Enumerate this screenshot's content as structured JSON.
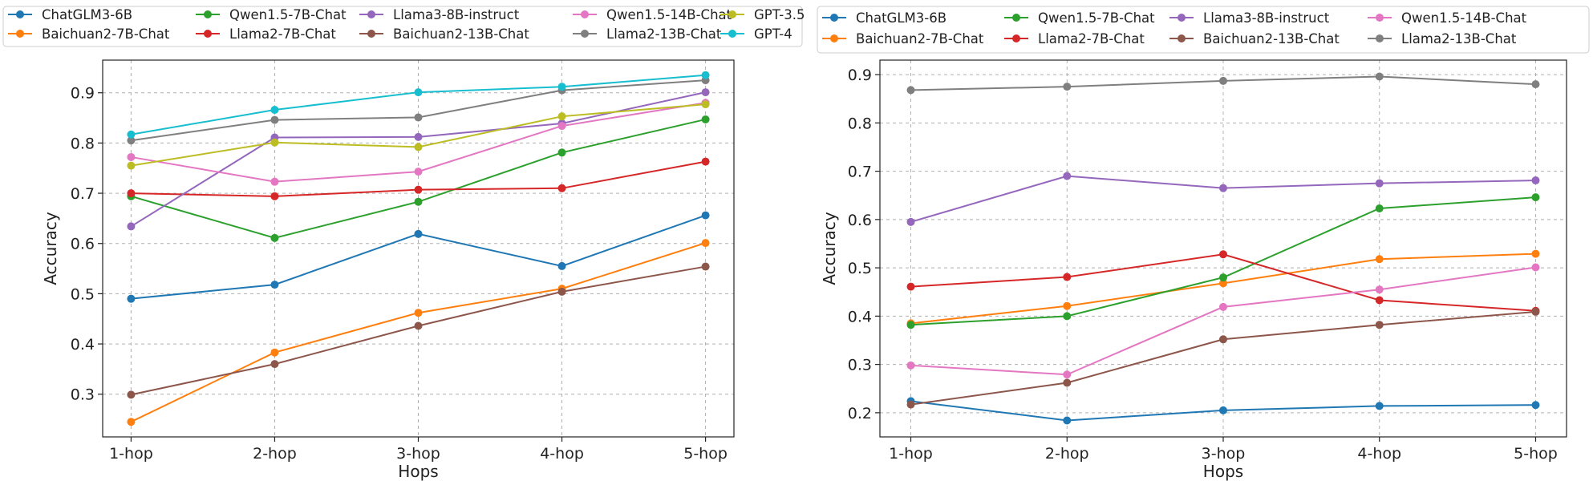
{
  "chart_data": [
    {
      "type": "line",
      "title": "",
      "xlabel": "Hops",
      "ylabel": "Accuracy",
      "categories": [
        "1-hop",
        "2-hop",
        "3-hop",
        "4-hop",
        "5-hop"
      ],
      "ylim": [
        0.215,
        0.965
      ],
      "yticks": [
        0.3,
        0.4,
        0.5,
        0.6,
        0.7,
        0.8,
        0.9
      ],
      "ytick_labels": [
        "0.3",
        "0.4",
        "0.5",
        "0.6",
        "0.7",
        "0.8",
        "0.9"
      ],
      "grid": true,
      "legend_position": "top",
      "series": [
        {
          "name": "ChatGLM3-6B",
          "color": "#1f77b4",
          "values": [
            0.49,
            0.518,
            0.619,
            0.555,
            0.656
          ]
        },
        {
          "name": "Baichuan2-7B-Chat",
          "color": "#ff7f0e",
          "values": [
            0.245,
            0.383,
            0.462,
            0.51,
            0.601
          ]
        },
        {
          "name": "Qwen1.5-7B-Chat",
          "color": "#2ca02c",
          "values": [
            0.694,
            0.611,
            0.683,
            0.781,
            0.847
          ]
        },
        {
          "name": "Llama2-7B-Chat",
          "color": "#d62728",
          "values": [
            0.7,
            0.694,
            0.707,
            0.71,
            0.763
          ]
        },
        {
          "name": "Llama3-8B-instruct",
          "color": "#9467bd",
          "values": [
            0.634,
            0.811,
            0.812,
            0.839,
            0.901
          ]
        },
        {
          "name": "Baichuan2-13B-Chat",
          "color": "#8c564b",
          "values": [
            0.299,
            0.36,
            0.436,
            0.504,
            0.554
          ]
        },
        {
          "name": "Qwen1.5-14B-Chat",
          "color": "#e377c2",
          "values": [
            0.772,
            0.723,
            0.743,
            0.834,
            0.88
          ]
        },
        {
          "name": "Llama2-13B-Chat",
          "color": "#7f7f7f",
          "values": [
            0.805,
            0.846,
            0.851,
            0.905,
            0.925
          ]
        },
        {
          "name": "GPT-3.5",
          "color": "#bcbd22",
          "values": [
            0.755,
            0.801,
            0.792,
            0.853,
            0.877
          ]
        },
        {
          "name": "GPT-4",
          "color": "#17becf",
          "values": [
            0.817,
            0.866,
            0.901,
            0.912,
            0.935
          ]
        }
      ]
    },
    {
      "type": "line",
      "title": "",
      "xlabel": "Hops",
      "ylabel": "Accuracy",
      "categories": [
        "1-hop",
        "2-hop",
        "3-hop",
        "4-hop",
        "5-hop"
      ],
      "ylim": [
        0.15,
        0.93
      ],
      "yticks": [
        0.2,
        0.3,
        0.4,
        0.5,
        0.6,
        0.7,
        0.8,
        0.9
      ],
      "ytick_labels": [
        "0.2",
        "0.3",
        "0.4",
        "0.5",
        "0.6",
        "0.7",
        "0.8",
        "0.9"
      ],
      "grid": true,
      "legend_position": "top",
      "series": [
        {
          "name": "ChatGLM3-6B",
          "color": "#1f77b4",
          "values": [
            0.224,
            0.184,
            0.205,
            0.214,
            0.216
          ]
        },
        {
          "name": "Baichuan2-7B-Chat",
          "color": "#ff7f0e",
          "values": [
            0.385,
            0.421,
            0.468,
            0.518,
            0.529
          ]
        },
        {
          "name": "Qwen1.5-7B-Chat",
          "color": "#2ca02c",
          "values": [
            0.382,
            0.4,
            0.48,
            0.623,
            0.646
          ]
        },
        {
          "name": "Llama2-7B-Chat",
          "color": "#d62728",
          "values": [
            0.461,
            0.481,
            0.528,
            0.433,
            0.411
          ]
        },
        {
          "name": "Llama3-8B-instruct",
          "color": "#9467bd",
          "values": [
            0.595,
            0.69,
            0.665,
            0.675,
            0.681
          ]
        },
        {
          "name": "Baichuan2-13B-Chat",
          "color": "#8c564b",
          "values": [
            0.217,
            0.262,
            0.352,
            0.382,
            0.409
          ]
        },
        {
          "name": "Qwen1.5-14B-Chat",
          "color": "#e377c2",
          "values": [
            0.298,
            0.279,
            0.419,
            0.455,
            0.501
          ]
        },
        {
          "name": "Llama2-13B-Chat",
          "color": "#7f7f7f",
          "values": [
            0.868,
            0.875,
            0.887,
            0.896,
            0.88
          ]
        }
      ]
    }
  ]
}
